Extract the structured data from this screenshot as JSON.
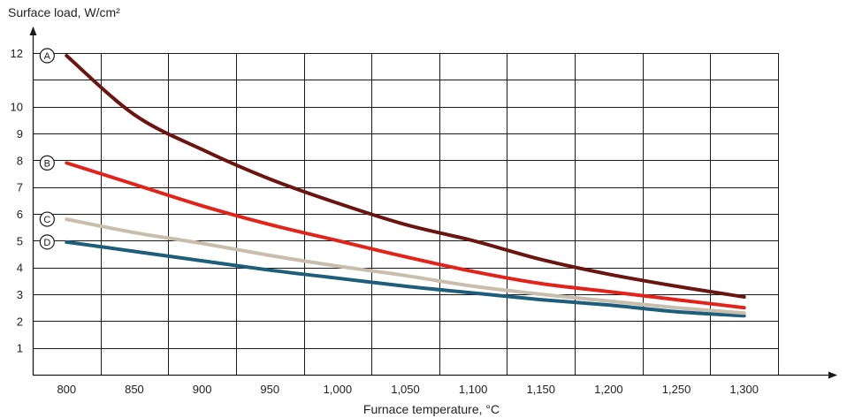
{
  "chart_data": {
    "type": "line",
    "title": "",
    "xlabel": "Furnace temperature, °C",
    "ylabel": "Surface load, W/cm²",
    "xlim": [
      750,
      1350
    ],
    "ylim": [
      0,
      12.5
    ],
    "grid": true,
    "x_ticks": [
      {
        "value": 800,
        "label": "800"
      },
      {
        "value": 850,
        "label": "850"
      },
      {
        "value": 900,
        "label": "900"
      },
      {
        "value": 950,
        "label": "950"
      },
      {
        "value": 1000,
        "label": "1,000"
      },
      {
        "value": 1050,
        "label": "1,050"
      },
      {
        "value": 1100,
        "label": "1,100"
      },
      {
        "value": 1150,
        "label": "1,150"
      },
      {
        "value": 1200,
        "label": "1,200"
      },
      {
        "value": 1250,
        "label": "1,250"
      },
      {
        "value": 1300,
        "label": "1,300"
      }
    ],
    "y_ticks": [
      {
        "value": 1,
        "label": "1"
      },
      {
        "value": 2,
        "label": "2"
      },
      {
        "value": 3,
        "label": "3"
      },
      {
        "value": 4,
        "label": "4"
      },
      {
        "value": 5,
        "label": "5"
      },
      {
        "value": 6,
        "label": "6"
      },
      {
        "value": 7,
        "label": "7"
      },
      {
        "value": 8,
        "label": "8"
      },
      {
        "value": 9,
        "label": "9"
      },
      {
        "value": 10,
        "label": "10"
      },
      {
        "value": 12,
        "label": "12"
      }
    ],
    "x": [
      800,
      850,
      900,
      950,
      1000,
      1050,
      1100,
      1150,
      1200,
      1250,
      1300
    ],
    "series": [
      {
        "name": "A",
        "color": "#6b1510",
        "values": [
          11.9,
          9.7,
          8.4,
          7.3,
          6.4,
          5.6,
          5.0,
          4.3,
          3.75,
          3.3,
          2.9
        ]
      },
      {
        "name": "B",
        "color": "#e2231a",
        "values": [
          7.9,
          7.1,
          6.3,
          5.6,
          5.0,
          4.4,
          3.85,
          3.4,
          3.1,
          2.8,
          2.5
        ]
      },
      {
        "name": "C",
        "color": "#c9bdad",
        "values": [
          5.8,
          5.3,
          4.9,
          4.45,
          4.05,
          3.7,
          3.3,
          3.0,
          2.75,
          2.5,
          2.3
        ]
      },
      {
        "name": "D",
        "color": "#1d5e7a",
        "values": [
          4.95,
          4.6,
          4.25,
          3.9,
          3.6,
          3.3,
          3.05,
          2.8,
          2.6,
          2.35,
          2.2
        ]
      }
    ]
  }
}
